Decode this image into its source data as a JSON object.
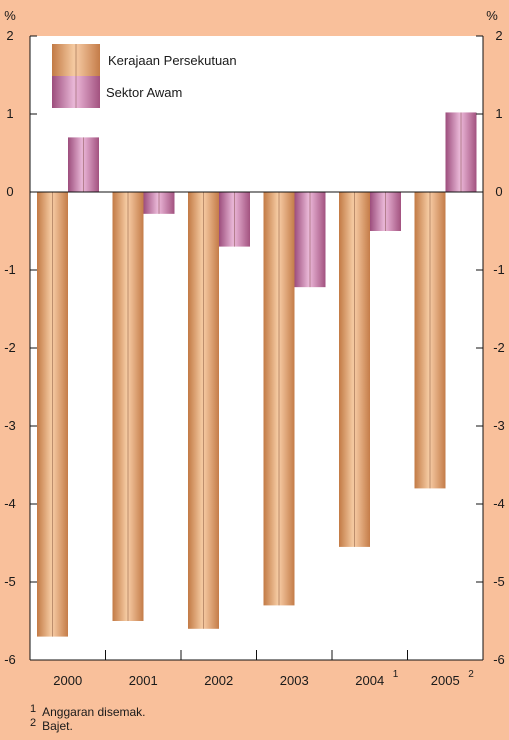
{
  "chart_data": {
    "type": "bar",
    "categories": [
      "2000",
      "2001",
      "2002",
      "2003",
      "2004",
      "2005"
    ],
    "category_notes": [
      "",
      "",
      "",
      "",
      "1",
      "2"
    ],
    "series": [
      {
        "name": "Kerajaan Persekutuan",
        "values": [
          -5.7,
          -5.5,
          -5.6,
          -5.3,
          -4.55,
          -3.8
        ],
        "color": "#d89a6a"
      },
      {
        "name": "Sektor Awam",
        "values": [
          0.7,
          -0.28,
          -0.7,
          -1.22,
          -0.5,
          1.02
        ],
        "color": "#b9739c"
      }
    ],
    "ylim": [
      -6,
      2
    ],
    "yticks": [
      "-6",
      "-5",
      "-4",
      "-3",
      "-2",
      "-1",
      "0",
      "1",
      "2"
    ],
    "y_unit_left": "%",
    "y_unit_right": "%",
    "legend_position": "top-left",
    "grid": false
  },
  "footnotes": [
    {
      "num": "1",
      "text": "Anggaran disemak."
    },
    {
      "num": "2",
      "text": "Bajet."
    }
  ]
}
